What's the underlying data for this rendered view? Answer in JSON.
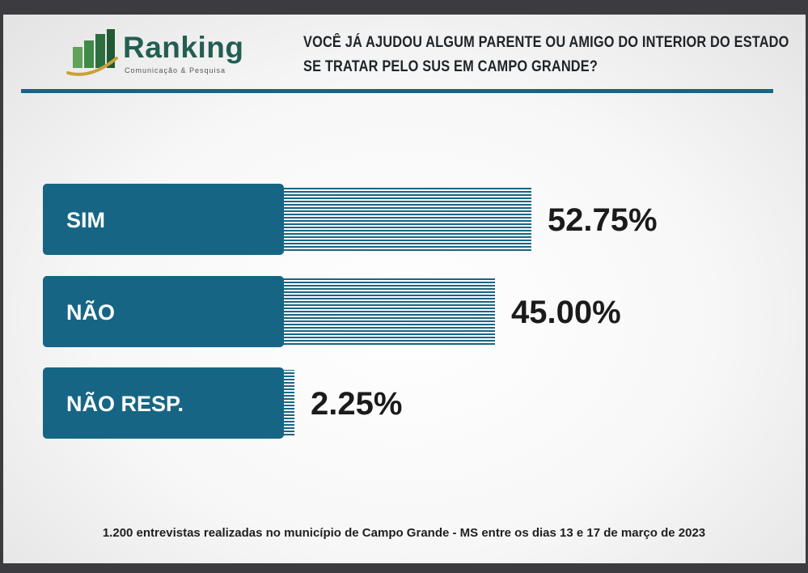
{
  "brand": {
    "name": "Ranking",
    "tagline": "Comunicação & Pesquisa"
  },
  "question": {
    "line1": "VOCÊ JÁ AJUDOU ALGUM PARENTE OU AMIGO DO INTERIOR DO ESTADO",
    "line2": "SE TRATAR PELO SUS EM CAMPO GRANDE?"
  },
  "footnote": "1.200 entrevistas realizadas no município de Campo Grande - MS entre os dias 13 e 17 de março de 2023",
  "colors": {
    "bar": "#176585",
    "accent_rule": "#176585",
    "logo_green": "#235e52",
    "logo_gold": "#c9a13a"
  },
  "chart_data": {
    "type": "bar",
    "orientation": "horizontal",
    "categories": [
      "SIM",
      "NÃO",
      "NÃO RESP."
    ],
    "values": [
      52.75,
      45.0,
      2.25
    ],
    "value_labels": [
      "52.75%",
      "45.00%",
      "2.25%"
    ],
    "title": "",
    "xlabel": "",
    "ylabel": "",
    "xlim": [
      0,
      100
    ],
    "grid": false,
    "legend": "none"
  }
}
